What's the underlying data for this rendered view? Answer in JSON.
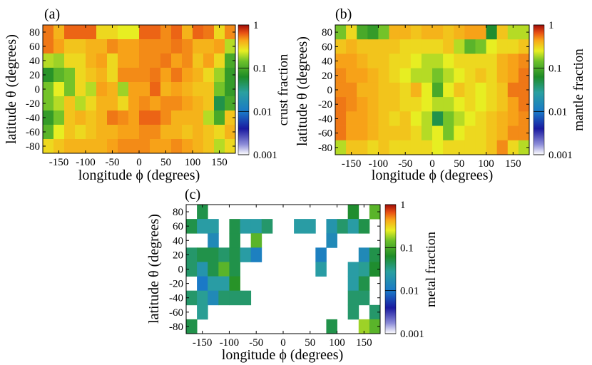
{
  "chart_data": [
    {
      "type": "heatmap",
      "panel_label": "(a)",
      "xlabel": "longitude ϕ (degrees)",
      "ylabel": "latitude θ (degrees)",
      "xticks": [
        -150,
        -100,
        -50,
        0,
        50,
        100,
        150
      ],
      "yticks": [
        80,
        60,
        40,
        20,
        0,
        -20,
        -40,
        -60,
        -80
      ],
      "xlim": [
        -180,
        180
      ],
      "ylim": [
        -90,
        90
      ],
      "colorbar": {
        "label": "crust fraction",
        "scale": "log",
        "range": [
          0.001,
          1
        ],
        "tick_labels": [
          "1",
          "0.1",
          "0.01",
          "0.001"
        ]
      },
      "grid_rows_lat": [
        90,
        70,
        50,
        30,
        10,
        -10,
        -30,
        -50,
        -70,
        -90
      ],
      "grid_cols_lon": [
        -180,
        -160,
        -140,
        -120,
        -100,
        -80,
        -60,
        -40,
        -20,
        0,
        20,
        40,
        60,
        80,
        100,
        120,
        140,
        160,
        180
      ],
      "values": [
        [
          0.55,
          0.4,
          0.6,
          0.6,
          0.6,
          0.3,
          0.3,
          0.25,
          0.25,
          0.6,
          0.6,
          0.5,
          0.6,
          0.4,
          0.6,
          0.55,
          0.3,
          0.5
        ],
        [
          0.55,
          0.45,
          0.35,
          0.35,
          0.4,
          0.4,
          0.5,
          0.45,
          0.45,
          0.5,
          0.5,
          0.5,
          0.55,
          0.5,
          0.4,
          0.4,
          0.45,
          0.2
        ],
        [
          0.2,
          0.18,
          0.3,
          0.3,
          0.4,
          0.45,
          0.3,
          0.45,
          0.45,
          0.5,
          0.5,
          0.55,
          0.45,
          0.5,
          0.35,
          0.45,
          0.3,
          0.1
        ],
        [
          0.07,
          0.12,
          0.15,
          0.3,
          0.35,
          0.4,
          0.3,
          0.5,
          0.5,
          0.5,
          0.55,
          0.45,
          0.55,
          0.45,
          0.4,
          0.3,
          0.18,
          0.08
        ],
        [
          0.15,
          0.25,
          0.15,
          0.3,
          0.2,
          0.45,
          0.4,
          0.18,
          0.45,
          0.45,
          0.6,
          0.4,
          0.45,
          0.4,
          0.35,
          0.35,
          0.15,
          0.08
        ],
        [
          0.15,
          0.2,
          0.35,
          0.2,
          0.3,
          0.4,
          0.4,
          0.3,
          0.45,
          0.5,
          0.45,
          0.5,
          0.5,
          0.45,
          0.4,
          0.35,
          0.05,
          0.1
        ],
        [
          0.08,
          0.15,
          0.35,
          0.4,
          0.35,
          0.4,
          0.55,
          0.5,
          0.45,
          0.6,
          0.6,
          0.5,
          0.4,
          0.4,
          0.4,
          0.2,
          0.1,
          0.35
        ],
        [
          0.12,
          0.25,
          0.35,
          0.3,
          0.35,
          0.4,
          0.4,
          0.45,
          0.45,
          0.5,
          0.5,
          0.4,
          0.4,
          0.35,
          0.4,
          0.35,
          0.3,
          0.4
        ],
        [
          0.3,
          0.35,
          0.4,
          0.4,
          0.4,
          0.4,
          0.45,
          0.5,
          0.5,
          0.5,
          0.45,
          0.45,
          0.5,
          0.45,
          0.4,
          0.35,
          0.2,
          0.3
        ]
      ]
    },
    {
      "type": "heatmap",
      "panel_label": "(b)",
      "xlabel": "longitude ϕ (degrees)",
      "ylabel": "latitude θ (degrees)",
      "xticks": [
        -150,
        -100,
        -50,
        0,
        50,
        100,
        150
      ],
      "yticks": [
        80,
        60,
        40,
        20,
        0,
        -20,
        -40,
        -60,
        -80
      ],
      "xlim": [
        -180,
        180
      ],
      "ylim": [
        -90,
        90
      ],
      "colorbar": {
        "label": "mantle fraction",
        "scale": "log",
        "range": [
          0.001,
          1
        ],
        "tick_labels": [
          "1",
          "0.1",
          "0.01",
          "0.001"
        ]
      },
      "grid_rows_lat": [
        90,
        70,
        50,
        30,
        10,
        -10,
        -30,
        -50,
        -70,
        -90
      ],
      "grid_cols_lon": [
        -180,
        -160,
        -140,
        -120,
        -100,
        -80,
        -60,
        -40,
        -20,
        0,
        20,
        40,
        60,
        80,
        100,
        120,
        140,
        160,
        180
      ],
      "values": [
        [
          0.15,
          0.3,
          0.1,
          0.08,
          0.15,
          0.4,
          0.4,
          0.35,
          0.4,
          0.4,
          0.35,
          0.4,
          0.45,
          0.45,
          0.06,
          0.35,
          0.2,
          0.2
        ],
        [
          0.35,
          0.4,
          0.35,
          0.35,
          0.35,
          0.35,
          0.3,
          0.3,
          0.3,
          0.3,
          0.35,
          0.2,
          0.12,
          0.15,
          0.25,
          0.3,
          0.3,
          0.35
        ],
        [
          0.45,
          0.45,
          0.4,
          0.35,
          0.35,
          0.3,
          0.3,
          0.25,
          0.2,
          0.2,
          0.25,
          0.3,
          0.3,
          0.3,
          0.3,
          0.4,
          0.45,
          0.5
        ],
        [
          0.5,
          0.45,
          0.45,
          0.4,
          0.35,
          0.3,
          0.25,
          0.2,
          0.2,
          0.15,
          0.2,
          0.25,
          0.3,
          0.35,
          0.3,
          0.4,
          0.45,
          0.55
        ],
        [
          0.5,
          0.5,
          0.4,
          0.4,
          0.35,
          0.35,
          0.3,
          0.4,
          0.25,
          0.1,
          0.25,
          0.35,
          0.3,
          0.25,
          0.3,
          0.35,
          0.55,
          0.55
        ],
        [
          0.55,
          0.5,
          0.45,
          0.4,
          0.35,
          0.35,
          0.3,
          0.3,
          0.25,
          0.2,
          0.2,
          0.25,
          0.3,
          0.25,
          0.3,
          0.35,
          0.45,
          0.55
        ],
        [
          0.55,
          0.45,
          0.45,
          0.4,
          0.35,
          0.3,
          0.35,
          0.25,
          0.2,
          0.05,
          0.15,
          0.2,
          0.25,
          0.3,
          0.35,
          0.4,
          0.45,
          0.5
        ],
        [
          0.55,
          0.45,
          0.45,
          0.4,
          0.35,
          0.35,
          0.35,
          0.3,
          0.2,
          0.25,
          0.15,
          0.25,
          0.3,
          0.3,
          0.35,
          0.4,
          0.5,
          0.5
        ],
        [
          0.2,
          0.35,
          0.35,
          0.3,
          0.35,
          0.3,
          0.3,
          0.3,
          0.3,
          0.25,
          0.3,
          0.3,
          0.3,
          0.3,
          0.35,
          0.5,
          0.3,
          0.2
        ]
      ]
    },
    {
      "type": "heatmap",
      "panel_label": "(c)",
      "xlabel": "longitude ϕ (degrees)",
      "ylabel": "latitude θ (degrees)",
      "xticks": [
        -150,
        -100,
        -50,
        0,
        50,
        100,
        150
      ],
      "yticks": [
        80,
        60,
        40,
        20,
        0,
        -20,
        -40,
        -60,
        -80
      ],
      "xlim": [
        -180,
        180
      ],
      "ylim": [
        -90,
        90
      ],
      "colorbar": {
        "label": "metal fraction",
        "scale": "log",
        "range": [
          0.001,
          1
        ],
        "tick_labels": [
          "1",
          "0.1",
          "0.01",
          "0.001"
        ]
      },
      "grid_rows_lat": [
        90,
        70,
        50,
        30,
        10,
        -10,
        -30,
        -50,
        -70,
        -90
      ],
      "grid_cols_lon": [
        -180,
        -160,
        -140,
        -120,
        -100,
        -80,
        -60,
        -40,
        -20,
        0,
        20,
        40,
        60,
        80,
        100,
        120,
        140,
        160,
        180
      ],
      "values": [
        [
          null,
          0.05,
          null,
          null,
          null,
          null,
          null,
          null,
          null,
          null,
          null,
          null,
          null,
          null,
          null,
          0.06,
          null,
          0.12
        ],
        [
          0.05,
          0.025,
          0.025,
          null,
          0.05,
          0.025,
          0.025,
          0.04,
          null,
          null,
          0.025,
          0.025,
          null,
          0.02,
          0.04,
          0.025,
          0.05,
          null
        ],
        [
          null,
          null,
          0.015,
          null,
          0.05,
          null,
          0.12,
          null,
          null,
          null,
          null,
          null,
          null,
          0.015,
          null,
          null,
          null,
          null
        ],
        [
          0.04,
          0.05,
          0.05,
          0.04,
          0.05,
          0.025,
          0.012,
          null,
          null,
          null,
          null,
          null,
          0.012,
          null,
          null,
          null,
          0.015,
          0.05
        ],
        [
          0.04,
          0.02,
          0.05,
          0.12,
          0.05,
          null,
          null,
          null,
          null,
          null,
          null,
          null,
          0.025,
          null,
          null,
          0.025,
          0.03,
          0.06
        ],
        [
          null,
          0.01,
          0.025,
          0.025,
          0.07,
          null,
          null,
          null,
          null,
          null,
          null,
          null,
          null,
          null,
          null,
          0.025,
          0.05,
          null
        ],
        [
          0.04,
          0.03,
          0.015,
          0.04,
          0.04,
          0.04,
          null,
          null,
          null,
          null,
          null,
          null,
          null,
          null,
          null,
          0.04,
          0.04,
          null
        ],
        [
          null,
          0.03,
          null,
          null,
          null,
          null,
          null,
          null,
          null,
          null,
          null,
          null,
          null,
          null,
          null,
          0.04,
          null,
          0.04
        ],
        [
          0.05,
          null,
          null,
          null,
          null,
          null,
          null,
          null,
          null,
          null,
          null,
          null,
          null,
          0.05,
          null,
          null,
          0.18,
          0.12
        ]
      ]
    }
  ]
}
